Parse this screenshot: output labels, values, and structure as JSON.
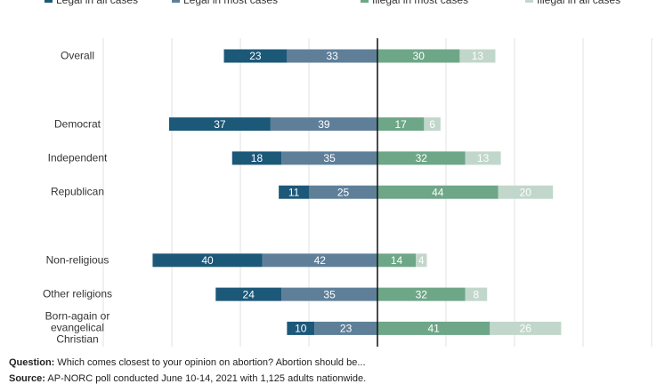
{
  "chart_data": {
    "type": "diverging_bar",
    "categories": [
      "Overall",
      "Democrat",
      "Independent",
      "Republican",
      "Non-religious",
      "Other religions",
      "Born-again or evangelical Christian"
    ],
    "series": [
      {
        "name": "Legal in all cases",
        "color": "#1c5878",
        "values": [
          23,
          37,
          18,
          11,
          40,
          24,
          10
        ]
      },
      {
        "name": "Legal in most cases",
        "color": "#5f7f99",
        "values": [
          33,
          39,
          35,
          25,
          42,
          35,
          23
        ]
      },
      {
        "name": "Illegal in most cases",
        "color": "#6ea688",
        "values": [
          30,
          17,
          32,
          44,
          14,
          32,
          41
        ]
      },
      {
        "name": "Illegal in all cases",
        "color": "#c2d7cb",
        "values": [
          13,
          6,
          13,
          20,
          4,
          8,
          26
        ]
      }
    ],
    "xlim": [
      -100,
      100
    ],
    "xticks": [
      -100,
      -75,
      -50,
      -25,
      0,
      25,
      50,
      75,
      100
    ],
    "grid": true,
    "question_label": "Question:",
    "question": "Which comes closest to your opinion on abortion? Abortion should be...",
    "source_label": "Source:",
    "source": "AP-NORC poll conducted June 10-14, 2021 with 1,125 adults nationwide."
  }
}
